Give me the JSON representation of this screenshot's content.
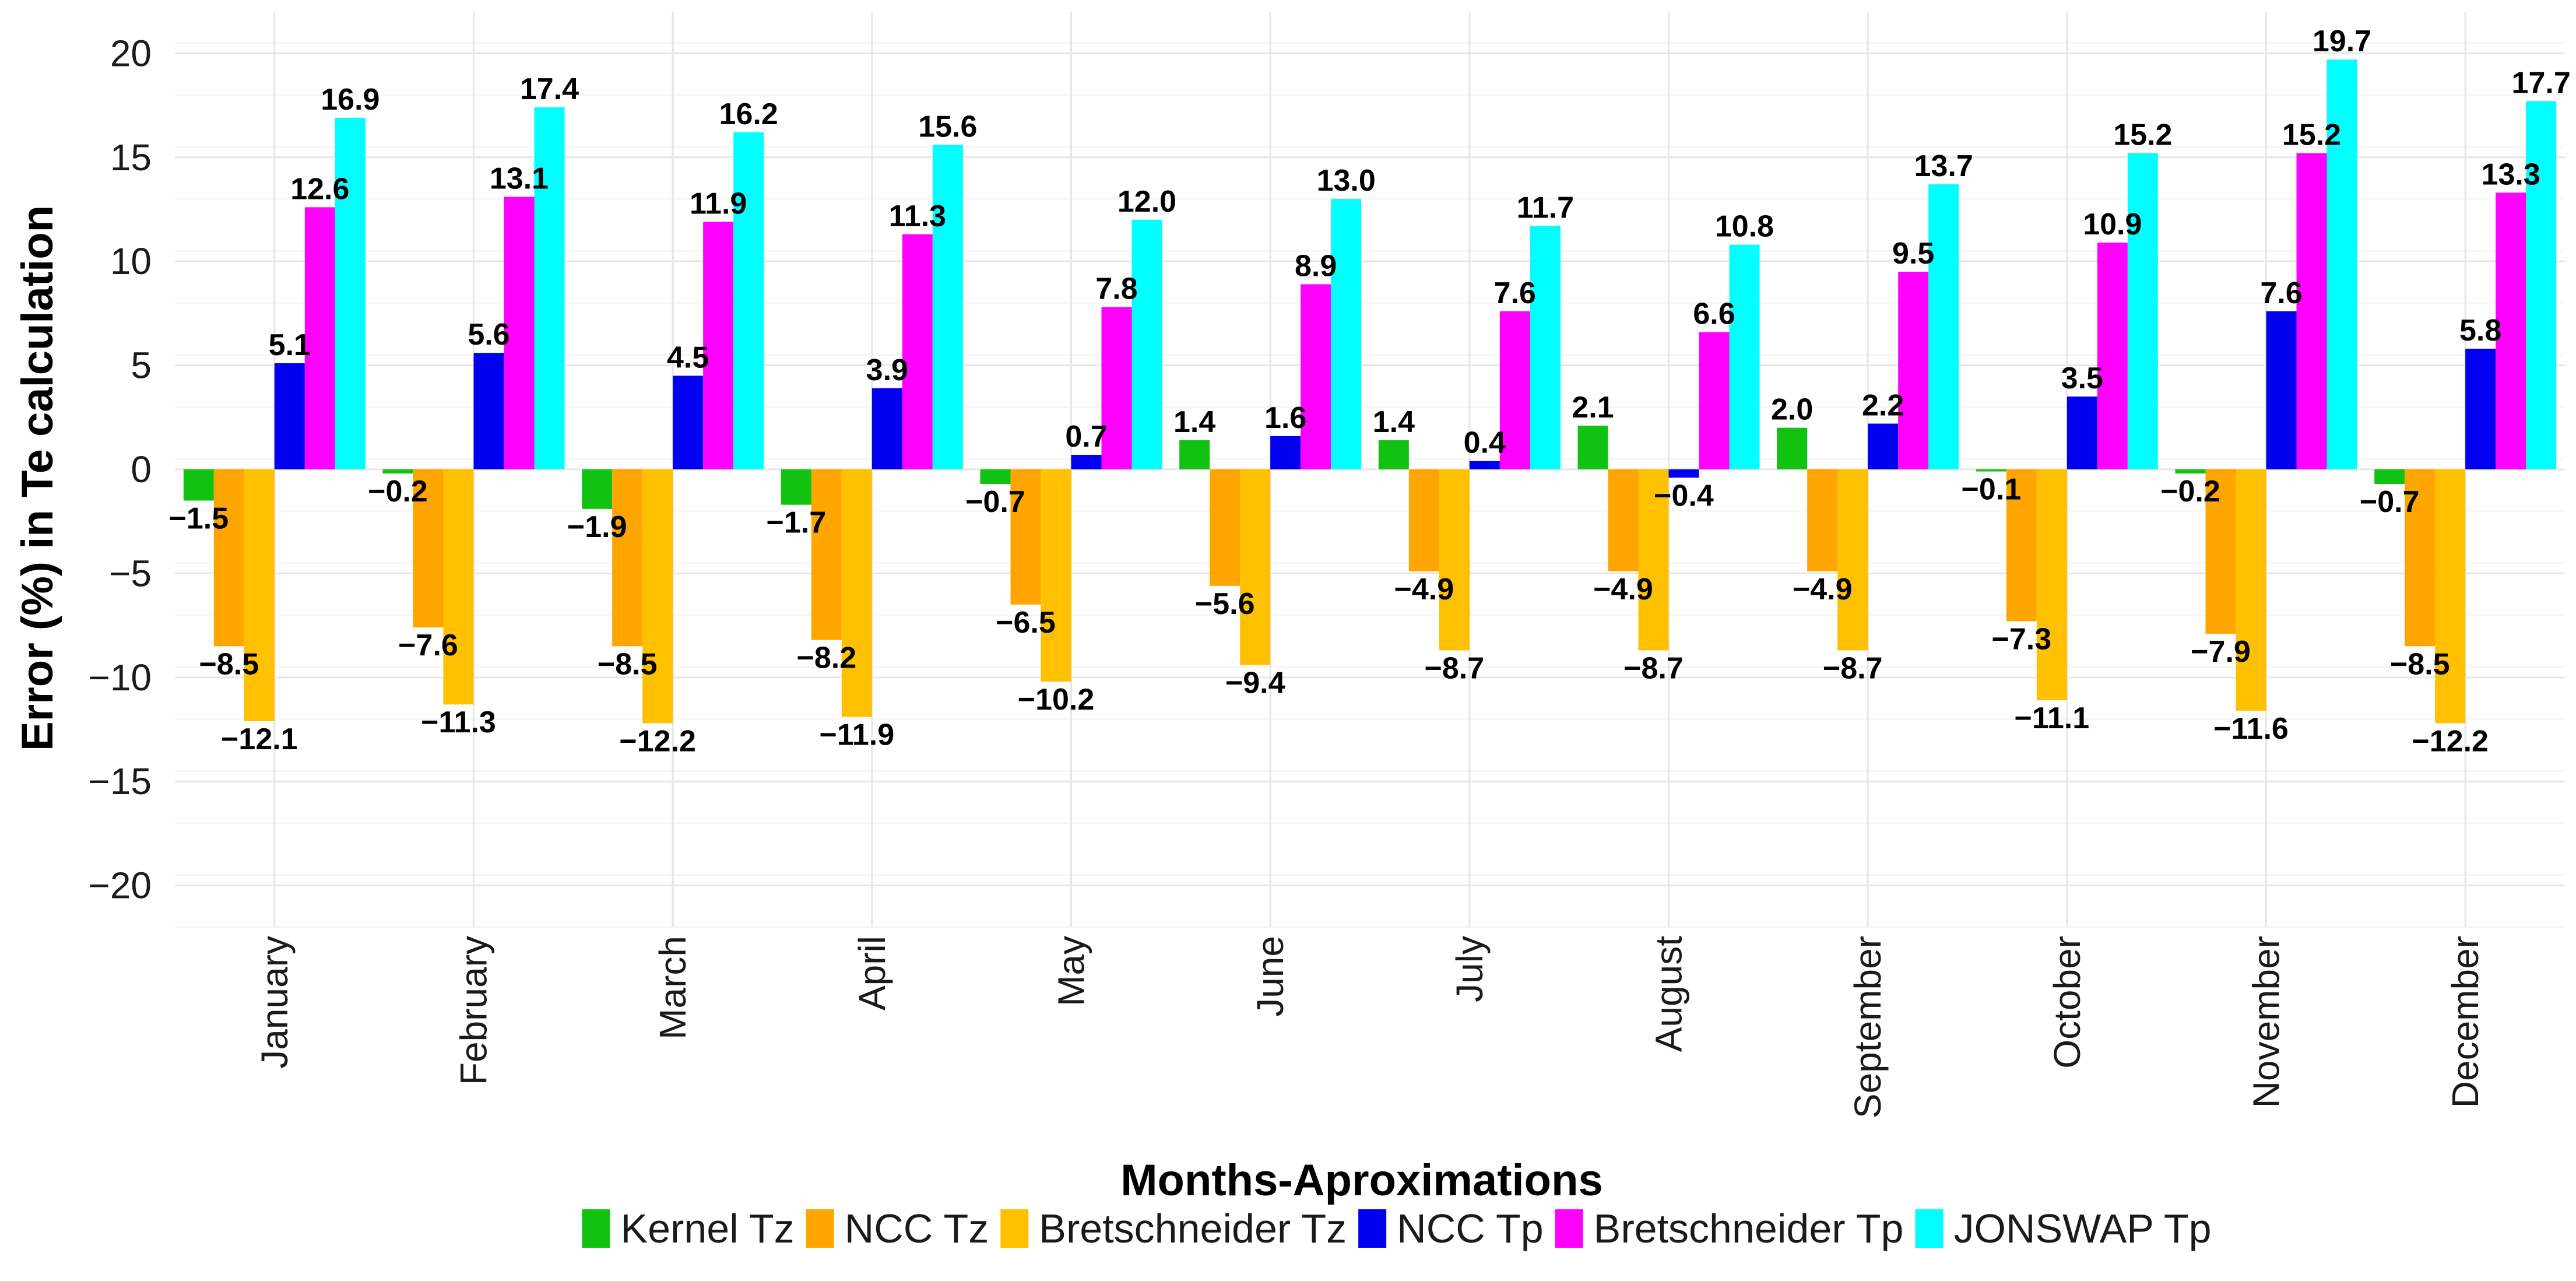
{
  "chart_data": {
    "type": "bar",
    "title": "",
    "xlabel": "Months-Aproximations",
    "ylabel": "Error (%) in Te calculation",
    "ylim": [
      -22,
      22
    ],
    "yticks": [
      -20,
      -15,
      -10,
      -5,
      0,
      5,
      10,
      15,
      20
    ],
    "ytick_labels": [
      "−20",
      "−15",
      "−10",
      "−5",
      "0",
      "5",
      "10",
      "15",
      "20"
    ],
    "grid": true,
    "legend_position": "bottom",
    "categories": [
      "January",
      "February",
      "March",
      "April",
      "May",
      "June",
      "July",
      "August",
      "September",
      "October",
      "November",
      "December"
    ],
    "series": [
      {
        "name": "Kernel Tz",
        "color": "#11c211",
        "values": [
          -1.5,
          -0.2,
          -1.9,
          -1.7,
          -0.7,
          1.4,
          1.4,
          2.1,
          2.0,
          -0.1,
          -0.2,
          -0.7
        ],
        "labels": [
          "−1.5",
          "−0.2",
          "−1.9",
          "−1.7",
          "−0.7",
          "1.4",
          "1.4",
          "2.1",
          "2.0",
          "−0.1",
          "−0.2",
          "−0.7"
        ]
      },
      {
        "name": "NCC Tz",
        "color": "#ffa500",
        "values": [
          -8.5,
          -7.6,
          -8.5,
          -8.2,
          -6.5,
          -5.6,
          -4.9,
          -4.9,
          -4.9,
          -7.3,
          -7.9,
          -8.5
        ],
        "labels": [
          "−8.5",
          "−7.6",
          "−8.5",
          "−8.2",
          "−6.5",
          "−5.6",
          "−4.9",
          "−4.9",
          "−4.9",
          "−7.3",
          "−7.9",
          "−8.5"
        ]
      },
      {
        "name": "Bretschneider Tz",
        "color": "#ffc000",
        "values": [
          -12.1,
          -11.3,
          -12.2,
          -11.9,
          -10.2,
          -9.4,
          -8.7,
          -8.7,
          -8.7,
          -11.1,
          -11.6,
          -12.2
        ],
        "labels": [
          "−12.1",
          "−11.3",
          "−12.2",
          "−11.9",
          "−10.2",
          "−9.4",
          "−8.7",
          "−8.7",
          "−8.7",
          "−11.1",
          "−11.6",
          "−12.2"
        ]
      },
      {
        "name": "NCC Tp",
        "color": "#0000ee",
        "values": [
          5.1,
          5.6,
          4.5,
          3.9,
          0.7,
          1.6,
          0.4,
          -0.4,
          2.2,
          3.5,
          7.6,
          5.8
        ],
        "labels": [
          "5.1",
          "5.6",
          "4.5",
          "3.9",
          "0.7",
          "1.6",
          "0.4",
          "−0.4",
          "2.2",
          "3.5",
          "7.6",
          "5.8"
        ]
      },
      {
        "name": "Bretschneider Tp",
        "color": "#ff00ff",
        "values": [
          12.6,
          13.1,
          11.9,
          11.3,
          7.8,
          8.9,
          7.6,
          6.6,
          9.5,
          10.9,
          15.2,
          13.3
        ],
        "labels": [
          "12.6",
          "13.1",
          "11.9",
          "11.3",
          "7.8",
          "8.9",
          "7.6",
          "6.6",
          "9.5",
          "10.9",
          "15.2",
          "13.3"
        ]
      },
      {
        "name": "JONSWAP Tp",
        "color": "#00ffff",
        "values": [
          16.9,
          17.4,
          16.2,
          15.6,
          12.0,
          13.0,
          11.7,
          10.8,
          13.7,
          15.2,
          19.7,
          17.7
        ],
        "labels": [
          "16.9",
          "17.4",
          "16.2",
          "15.6",
          "12.0",
          "13.0",
          "11.7",
          "10.8",
          "13.7",
          "15.2",
          "19.7",
          "17.7"
        ]
      }
    ]
  }
}
